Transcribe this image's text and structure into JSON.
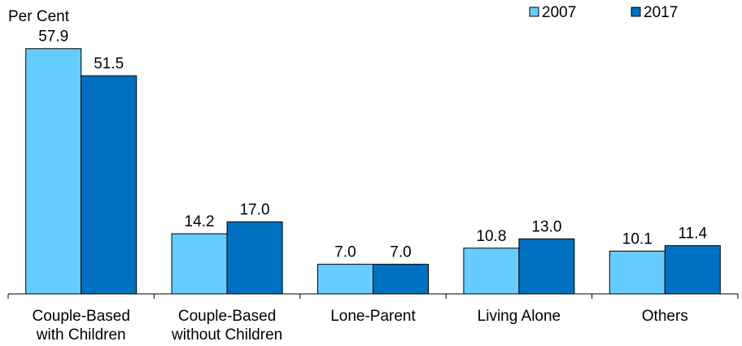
{
  "chart_data": {
    "type": "bar",
    "ylabel": "Per Cent",
    "categories": [
      [
        "Couple-Based",
        "with Children"
      ],
      [
        "Couple-Based",
        "without Children"
      ],
      [
        "Lone-Parent"
      ],
      [
        "Living Alone"
      ],
      [
        "Others"
      ]
    ],
    "series": [
      {
        "name": "2007",
        "color": "#66ccff",
        "values": [
          57.9,
          14.2,
          7.0,
          10.8,
          10.1
        ]
      },
      {
        "name": "2017",
        "color": "#0070c0",
        "values": [
          51.5,
          17.0,
          7.0,
          13.0,
          11.4
        ]
      }
    ],
    "ylim": [
      0,
      64
    ],
    "grid": false,
    "legend_position": "top-right",
    "value_decimals": 1
  }
}
